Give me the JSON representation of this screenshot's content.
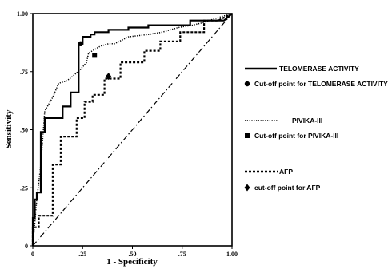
{
  "chart_data": {
    "type": "line",
    "title": "",
    "xlabel": "1 - Specificity",
    "ylabel": "Sensitivity",
    "xlim": [
      0,
      1
    ],
    "ylim": [
      0,
      1
    ],
    "x_ticks": [
      {
        "value": 0,
        "label": "0"
      },
      {
        "value": 0.25,
        "label": ".25"
      },
      {
        "value": 0.5,
        "label": ".50"
      },
      {
        "value": 0.75,
        "label": ".75"
      },
      {
        "value": 1,
        "label": "1.00"
      }
    ],
    "y_ticks": [
      {
        "value": 0,
        "label": "0"
      },
      {
        "value": 0.25,
        "label": ".25"
      },
      {
        "value": 0.5,
        "label": ".50"
      },
      {
        "value": 0.75,
        "label": ".75"
      },
      {
        "value": 1,
        "label": "1.00"
      }
    ],
    "series": [
      {
        "name": "TELOMERASE ACTIVITY",
        "style": "solid",
        "width": 2.2,
        "x": [
          0,
          0,
          0.01,
          0.01,
          0.02,
          0.02,
          0.04,
          0.04,
          0.06,
          0.06,
          0.15,
          0.15,
          0.19,
          0.19,
          0.23,
          0.23,
          0.25,
          0.25,
          0.29,
          0.29,
          0.31,
          0.31,
          0.38,
          0.38,
          0.48,
          0.48,
          0.58,
          0.58,
          0.79,
          0.79,
          0.96,
          1
        ],
        "y": [
          0,
          0.12,
          0.12,
          0.2,
          0.2,
          0.23,
          0.23,
          0.49,
          0.49,
          0.55,
          0.55,
          0.6,
          0.6,
          0.66,
          0.66,
          0.87,
          0.87,
          0.9,
          0.9,
          0.91,
          0.91,
          0.92,
          0.92,
          0.93,
          0.93,
          0.94,
          0.94,
          0.95,
          0.95,
          0.97,
          0.97,
          1
        ]
      },
      {
        "name": "PIVIKA-III",
        "style": "dotted",
        "width": 1.5,
        "x": [
          0,
          0.02,
          0.04,
          0.06,
          0.08,
          0.1,
          0.13,
          0.17,
          0.2,
          0.24,
          0.27,
          0.28,
          0.34,
          0.38,
          0.41,
          0.48,
          0.58,
          0.65,
          0.73,
          0.8,
          0.85,
          0.92,
          1
        ],
        "y": [
          0,
          0.2,
          0.35,
          0.58,
          0.61,
          0.64,
          0.7,
          0.71,
          0.73,
          0.76,
          0.79,
          0.83,
          0.86,
          0.87,
          0.87,
          0.9,
          0.91,
          0.92,
          0.94,
          0.95,
          0.96,
          0.98,
          1
        ]
      },
      {
        "name": "AFP",
        "style": "dashed",
        "width": 2.2,
        "x": [
          0,
          0,
          0.03,
          0.03,
          0.1,
          0.1,
          0.14,
          0.14,
          0.22,
          0.22,
          0.26,
          0.26,
          0.3,
          0.3,
          0.36,
          0.36,
          0.44,
          0.44,
          0.56,
          0.56,
          0.64,
          0.64,
          0.74,
          0.74,
          0.86,
          0.86,
          0.93,
          1
        ],
        "y": [
          0,
          0.08,
          0.08,
          0.13,
          0.13,
          0.35,
          0.35,
          0.47,
          0.47,
          0.55,
          0.55,
          0.62,
          0.62,
          0.65,
          0.65,
          0.72,
          0.72,
          0.79,
          0.79,
          0.84,
          0.84,
          0.88,
          0.88,
          0.92,
          0.92,
          0.97,
          0.97,
          1
        ]
      },
      {
        "name": "",
        "style": "dashdot",
        "width": 1.2,
        "x": [
          0,
          1
        ],
        "y": [
          0,
          1
        ]
      }
    ],
    "cutoff_points": [
      {
        "series": "TELOMERASE ACTIVITY",
        "marker": "circle",
        "x": 0.24,
        "y": 0.87
      },
      {
        "series": "PIVIKA-III",
        "marker": "square",
        "x": 0.31,
        "y": 0.82
      },
      {
        "series": "AFP",
        "marker": "diamond",
        "x": 0.38,
        "y": 0.73
      }
    ],
    "legend": {
      "placement": "right",
      "entries": [
        {
          "kind": "line",
          "style": "solid",
          "label": "TELOMERASE ACTIVITY"
        },
        {
          "kind": "marker",
          "marker": "circle",
          "label": "Cut-off point for TELOMERASE ACTIVITY"
        },
        {
          "kind": "line",
          "style": "dotted",
          "label": "PIVIKA-III"
        },
        {
          "kind": "marker",
          "marker": "square",
          "label": "Cut-off point for PIVIKA-III"
        },
        {
          "kind": "line",
          "style": "dashed",
          "label": "AFP"
        },
        {
          "kind": "marker",
          "marker": "diamond",
          "label": "cut-off point for AFP"
        }
      ]
    },
    "grid": false
  }
}
